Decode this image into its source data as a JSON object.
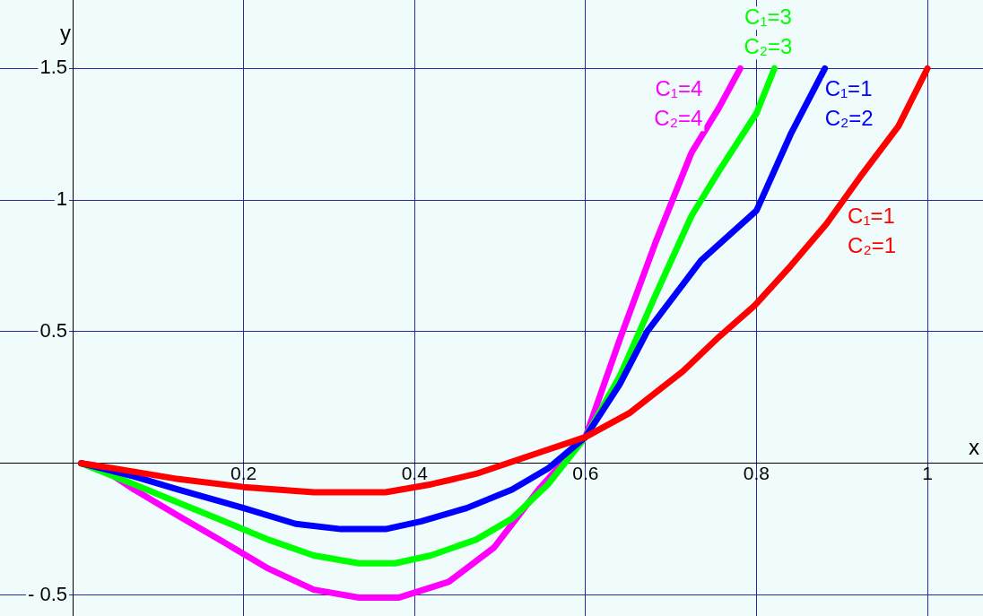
{
  "chart_data": {
    "type": "line",
    "xlabel": "x",
    "ylabel": "y",
    "xlim": [
      -0.085,
      1.065
    ],
    "ylim": [
      -0.58,
      1.76
    ],
    "xticks": [
      0.2,
      0.4,
      0.6,
      0.8,
      1
    ],
    "yticks": [
      {
        "value": -0.5,
        "label": "- 0.5"
      },
      0.5,
      1,
      1.5
    ],
    "grid": true,
    "marker": "none",
    "line_style": "solid",
    "series": [
      {
        "name": "C₁=1\nC₂=1",
        "color": "#ff0000",
        "x": [
          0.01,
          0.05,
          0.124,
          0.2,
          0.282,
          0.366,
          0.419,
          0.472,
          0.545,
          0.6,
          0.651,
          0.714,
          0.756,
          0.798,
          0.84,
          0.882,
          0.924,
          0.966,
          1.0
        ],
        "values": [
          0,
          -0.02,
          -0.06,
          -0.09,
          -0.11,
          -0.11,
          -0.08,
          -0.04,
          0.04,
          0.1,
          0.19,
          0.35,
          0.48,
          0.6,
          0.75,
          0.91,
          1.1,
          1.28,
          1.5
        ]
      },
      {
        "name": "C₁=1\nC₂=2",
        "color": "#0000ff",
        "x": [
          0.01,
          0.072,
          0.124,
          0.2,
          0.261,
          0.314,
          0.366,
          0.408,
          0.461,
          0.514,
          0.556,
          0.6,
          0.64,
          0.672,
          0.735,
          0.8,
          0.84,
          0.88
        ],
        "values": [
          0,
          -0.05,
          -0.1,
          -0.17,
          -0.23,
          -0.25,
          -0.25,
          -0.22,
          -0.17,
          -0.1,
          -0.02,
          0.1,
          0.3,
          0.5,
          0.77,
          0.96,
          1.25,
          1.5
        ]
      },
      {
        "name": "C₁=3\nC₂=3",
        "color": "#00ff00",
        "x": [
          0.01,
          0.072,
          0.124,
          0.177,
          0.229,
          0.282,
          0.335,
          0.377,
          0.419,
          0.472,
          0.514,
          0.556,
          0.6,
          0.64,
          0.682,
          0.724,
          0.756,
          0.8,
          0.821
        ],
        "values": [
          0,
          -0.08,
          -0.15,
          -0.22,
          -0.29,
          -0.35,
          -0.38,
          -0.38,
          -0.35,
          -0.29,
          -0.21,
          -0.08,
          0.1,
          0.33,
          0.64,
          0.94,
          1.11,
          1.33,
          1.5
        ]
      },
      {
        "name": "C₁=4\nC₂=4",
        "color": "#ff00ff",
        "x": [
          0.01,
          0.03,
          0.072,
          0.124,
          0.177,
          0.229,
          0.282,
          0.335,
          0.382,
          0.44,
          0.493,
          0.545,
          0.6,
          0.64,
          0.682,
          0.724,
          0.756,
          0.781
        ],
        "values": [
          0,
          -0.01,
          -0.1,
          -0.2,
          -0.3,
          -0.4,
          -0.48,
          -0.51,
          -0.51,
          -0.45,
          -0.32,
          -0.1,
          0.1,
          0.47,
          0.84,
          1.18,
          1.35,
          1.5
        ]
      }
    ]
  }
}
